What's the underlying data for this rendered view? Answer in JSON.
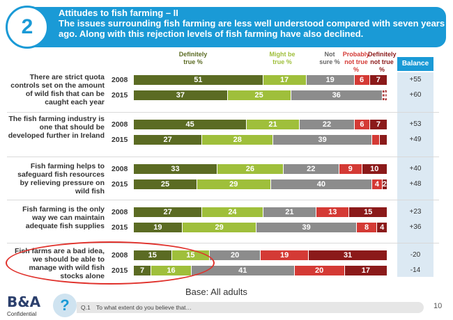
{
  "header": {
    "number": "2",
    "title_line1": "Attitudes to fish farming – II",
    "title_line2": "The issues surrounding fish farming are less well understood compared with seven years ago.  Along with this rejection levels of fish farming have  also declined."
  },
  "columns": [
    {
      "label": "Definitely true %",
      "color": "#5b6b23"
    },
    {
      "label": "Might be true %",
      "color": "#9fbf3b"
    },
    {
      "label": "Not sure %",
      "color": "#8c8c8c"
    },
    {
      "label": "Probably not true %",
      "color": "#d43a35"
    },
    {
      "label": "Definitely not true %",
      "color": "#8b1a1a"
    }
  ],
  "balance_label": "Balance",
  "chart_data": {
    "type": "bar",
    "orientation": "horizontal",
    "stacked": true,
    "series_names": [
      "Definitely true",
      "Might be true",
      "Not sure",
      "Probably not true",
      "Definitely not true"
    ],
    "groups": [
      {
        "label": "There are strict quota controls set on the amount of wild fish that can be caught each year",
        "rows": [
          {
            "year": "2008",
            "values": [
              51,
              17,
              19,
              6,
              7
            ],
            "balance": "+55"
          },
          {
            "year": "2015",
            "values": [
              37,
              25,
              36,
              1,
              1
            ],
            "balance": "+60"
          }
        ]
      },
      {
        "label": "The fish farming industry is one that should be developed further in Ireland",
        "rows": [
          {
            "year": "2008",
            "values": [
              45,
              21,
              22,
              6,
              7
            ],
            "balance": "+53"
          },
          {
            "year": "2015",
            "values": [
              27,
              28,
              39,
              3,
              3
            ],
            "balance": "+49"
          }
        ]
      },
      {
        "label": "Fish farming helps to safeguard fish resources by relieving pressure on wild fish",
        "rows": [
          {
            "year": "2008",
            "values": [
              33,
              26,
              22,
              9,
              10
            ],
            "balance": "+40"
          },
          {
            "year": "2015",
            "values": [
              25,
              29,
              40,
              4,
              2
            ],
            "balance": "+48"
          }
        ]
      },
      {
        "label": "Fish farming is the only way we can maintain adequate fish supplies",
        "rows": [
          {
            "year": "2008",
            "values": [
              27,
              24,
              21,
              13,
              15
            ],
            "balance": "+23"
          },
          {
            "year": "2015",
            "values": [
              19,
              29,
              39,
              8,
              4
            ],
            "balance": "+36"
          }
        ]
      },
      {
        "label": "Fish farms are a bad idea, we should be able to manage with wild fish stocks alone",
        "rows": [
          {
            "year": "2008",
            "values": [
              15,
              15,
              20,
              19,
              31
            ],
            "balance": "-20"
          },
          {
            "year": "2015",
            "values": [
              7,
              16,
              41,
              20,
              17
            ],
            "balance": "-14"
          }
        ]
      }
    ],
    "hidden_labels": [
      [
        1,
        1,
        3
      ],
      [
        1,
        1,
        4
      ]
    ]
  },
  "base": "Base:  All adults",
  "footer": {
    "logo": "B&A",
    "confidential": "Confidential",
    "question_number": "Q.1",
    "question_text": "To what extent do you believe that…",
    "page_number": "10"
  }
}
